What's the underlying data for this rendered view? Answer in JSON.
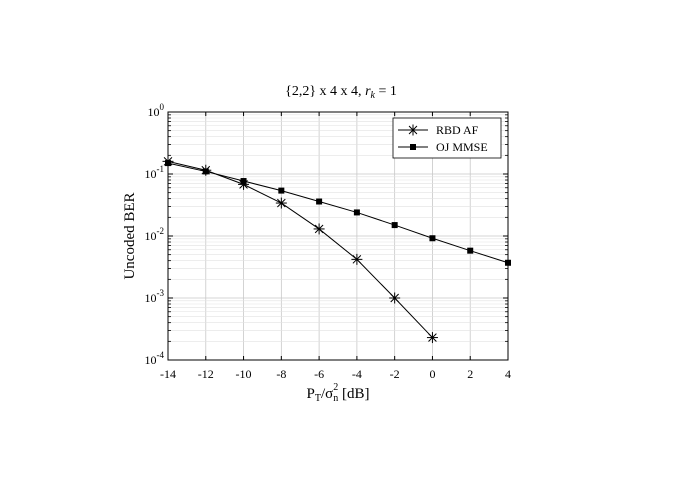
{
  "chart_data": {
    "type": "line",
    "title": {
      "prefix": "{2,2} x 4 x 4, ",
      "var": "r",
      "sub": "k",
      "suffix": " = 1"
    },
    "xlabel": {
      "p": "P",
      "p_sub": "T",
      "slash": "/",
      "sigma": "σ",
      "sigma_sub": "n",
      "sigma_sup": "2",
      "unit": " [dB]"
    },
    "ylabel": "Uncoded BER",
    "x_ticks": [
      "-14",
      "-12",
      "-10",
      "-8",
      "-6",
      "-4",
      "-2",
      "0",
      "2",
      "4"
    ],
    "y_ticks": [
      {
        "base": "10",
        "exp": "0"
      },
      {
        "base": "10",
        "exp": "-1"
      },
      {
        "base": "10",
        "exp": "-2"
      },
      {
        "base": "10",
        "exp": "-3"
      },
      {
        "base": "10",
        "exp": "-4"
      }
    ],
    "xlim": [
      -14,
      4
    ],
    "ylim": [
      0.0001,
      1
    ],
    "yscale": "log",
    "grid": true,
    "legend_position": "top-right",
    "series": [
      {
        "name": "RBD AF",
        "marker": "asterisk",
        "x": [
          -14,
          -12,
          -10,
          -8,
          -6,
          -4,
          -2,
          0
        ],
        "y": [
          0.16,
          0.115,
          0.068,
          0.034,
          0.013,
          0.0042,
          0.001,
          0.00023
        ]
      },
      {
        "name": "OJ MMSE",
        "marker": "square",
        "x": [
          -14,
          -12,
          -10,
          -8,
          -6,
          -4,
          -2,
          0,
          2,
          4
        ],
        "y": [
          0.15,
          0.11,
          0.077,
          0.054,
          0.036,
          0.024,
          0.015,
          0.0092,
          0.0058,
          0.0037
        ]
      }
    ]
  }
}
